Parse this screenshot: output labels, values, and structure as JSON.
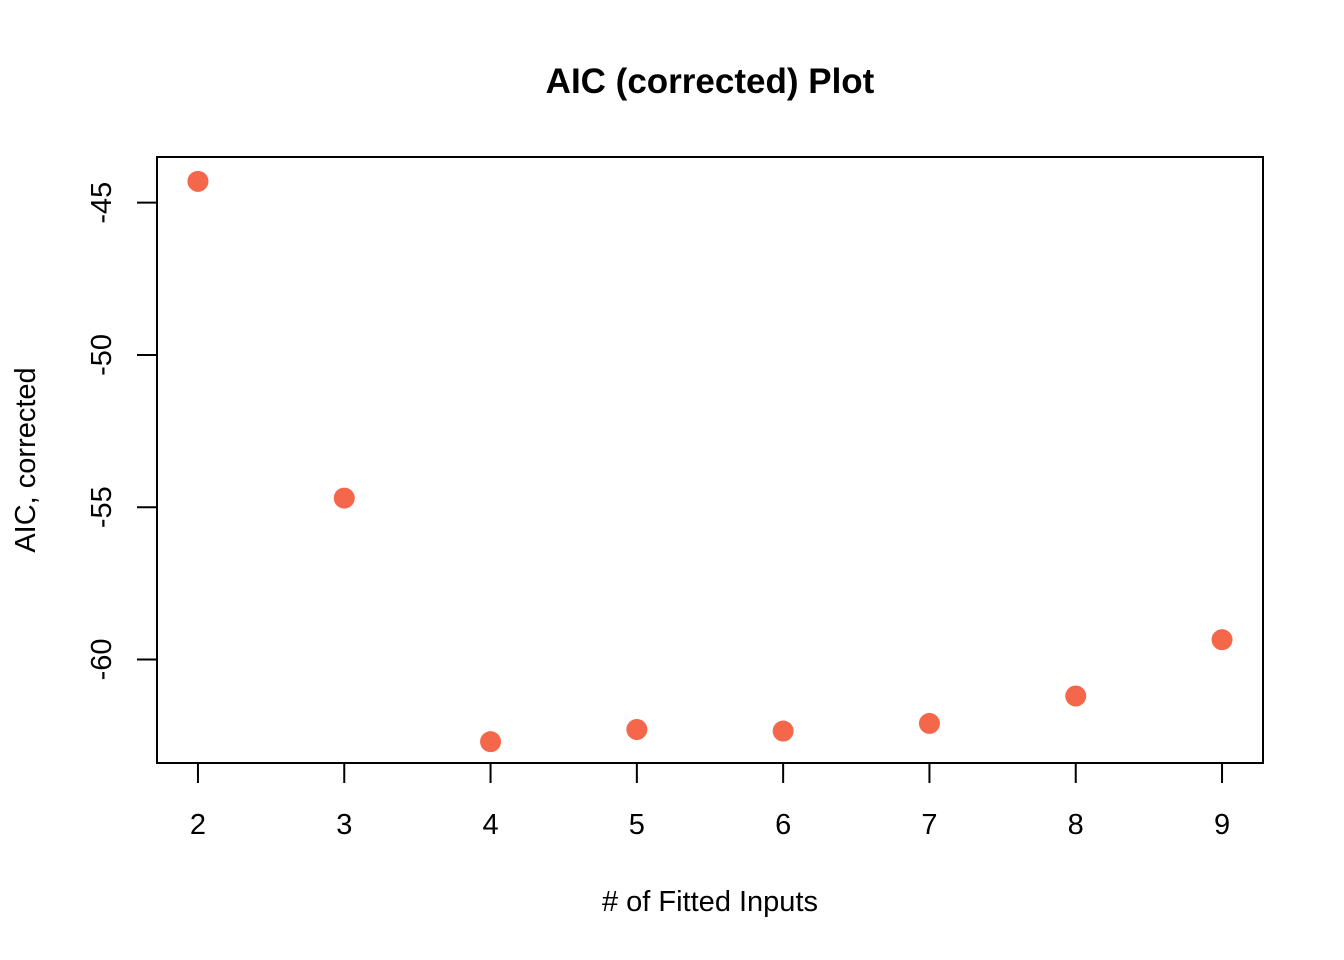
{
  "chart_data": {
    "type": "scatter",
    "title": "AIC (corrected) Plot",
    "xlabel": "# of Fitted Inputs",
    "ylabel": "AIC, corrected",
    "x": [
      2,
      3,
      4,
      5,
      6,
      7,
      8,
      9
    ],
    "y": [
      -44.3,
      -54.7,
      -62.7,
      -62.3,
      -62.35,
      -62.1,
      -61.2,
      -59.35
    ],
    "xlim": [
      1.72,
      9.28
    ],
    "ylim": [
      -63.4,
      -43.5
    ],
    "xticks": [
      2,
      3,
      4,
      5,
      6,
      7,
      8,
      9
    ],
    "yticks": [
      -45,
      -50,
      -55,
      -60
    ],
    "point_color": "#F4674A",
    "grid": false,
    "legend": "none"
  }
}
